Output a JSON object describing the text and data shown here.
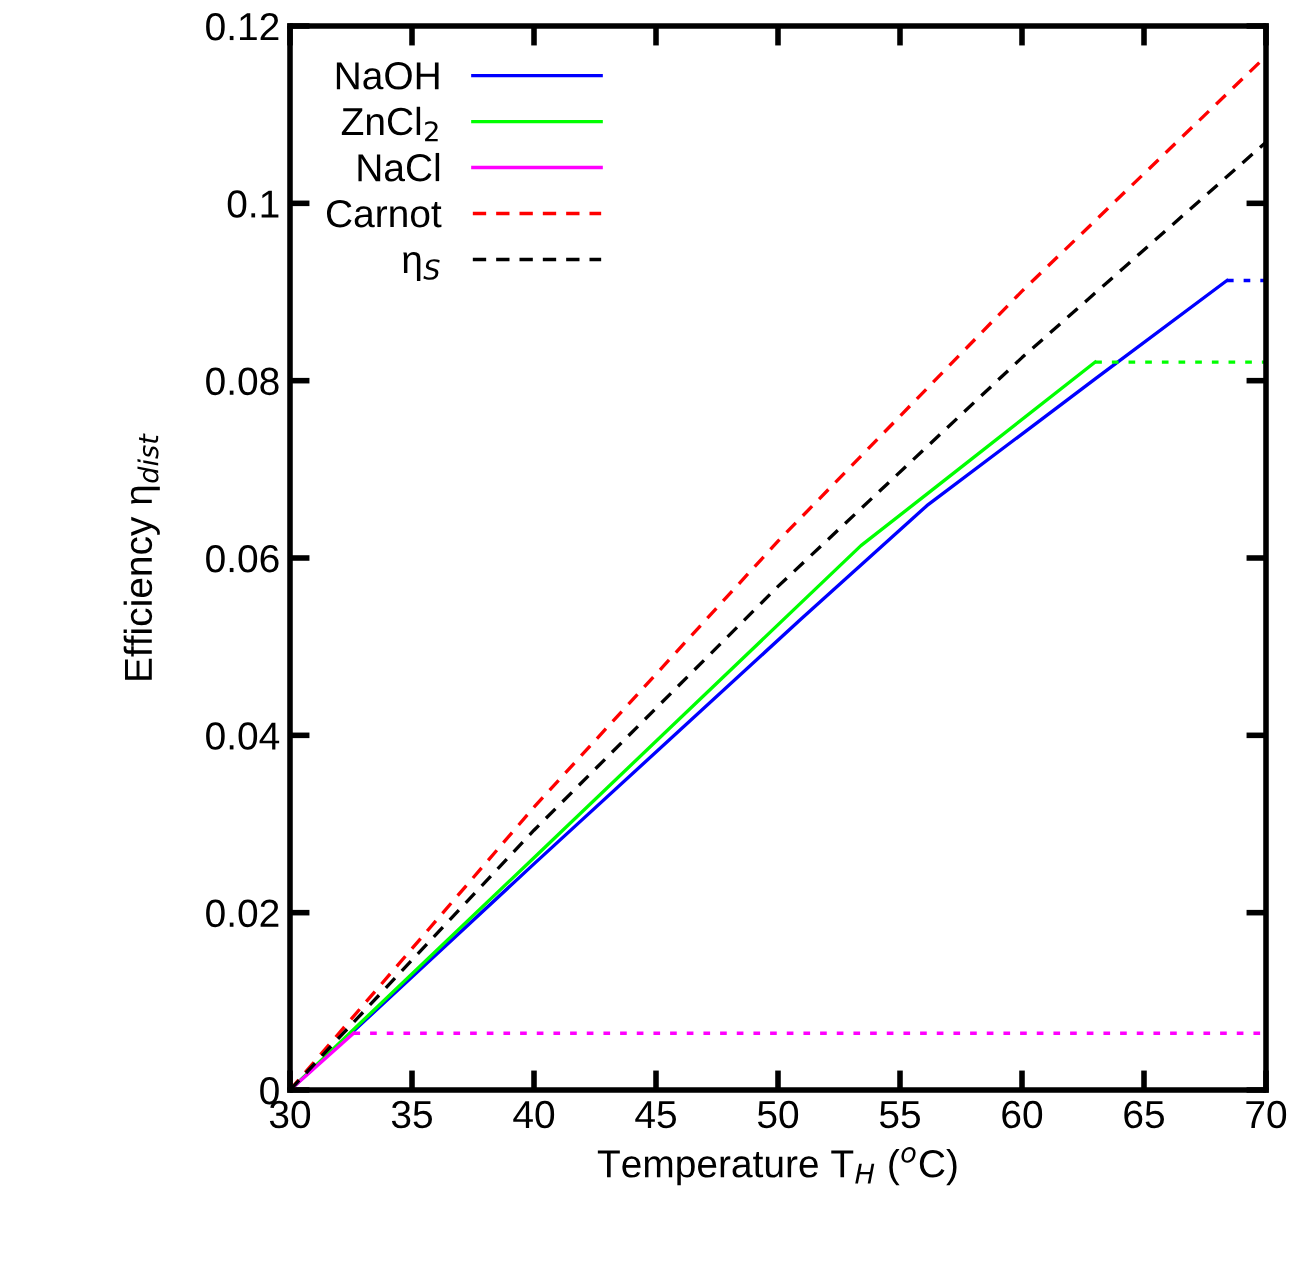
{
  "chart_data": {
    "type": "line",
    "xlabel": "Temperature T$_{H}$ ($^{o}$C)",
    "ylabel": "Efficiency η$_{dist}$",
    "xlim": [
      30,
      70
    ],
    "ylim": [
      0,
      0.12
    ],
    "xticks": [
      30,
      35,
      40,
      45,
      50,
      55,
      60,
      65,
      70
    ],
    "yticks": [
      0,
      {
        "value": 0.02,
        "label": "0.02"
      },
      {
        "value": 0.04,
        "label": "0.04"
      },
      {
        "value": 0.06,
        "label": "0.06"
      },
      {
        "value": 0.08,
        "label": "0.08"
      },
      {
        "value": 0.1,
        "label": "0.1"
      },
      {
        "value": 0.12,
        "label": "0.12"
      }
    ],
    "grid": false,
    "legend": "top left",
    "marker": "none",
    "series": [
      {
        "name": "NaOH",
        "color": "#0000ff",
        "line_style": "solid",
        "x": [
          30,
          40,
          50.9,
          56.1,
          63,
          68.4
        ],
        "values": [
          0,
          0.0255,
          0.053,
          0.0659,
          0.0802,
          0.0913
        ]
      },
      {
        "name": "ZnCl$_{2}$",
        "color": "#00ff00",
        "line_style": "solid",
        "x": [
          30,
          40,
          53.4,
          56.1,
          63.0
        ],
        "values": [
          0,
          0.0262,
          0.0614,
          0.0672,
          0.0821
        ]
      },
      {
        "name": "NaCl",
        "color": "#ff00ff",
        "line_style": "solid",
        "x": [
          30,
          32.6
        ],
        "values": [
          0,
          0.0064
        ]
      },
      {
        "name": "Carnot",
        "color": "#ff0000",
        "line_style": "dashed",
        "x": [
          30,
          40,
          50,
          60,
          70
        ],
        "values": [
          0,
          0.0319,
          0.0619,
          0.0901,
          0.1166
        ]
      },
      {
        "name": "η$_{S}$",
        "color": "#000000",
        "line_style": "dashed",
        "x": [
          30,
          40,
          50,
          60,
          70
        ],
        "values": [
          0,
          0.0293,
          0.0568,
          0.0826,
          0.1069
        ]
      },
      {
        "color": "#0000ff",
        "line_style": "dotted",
        "x": [
          68.4,
          70
        ],
        "values": [
          0.0913,
          0.0913
        ]
      },
      {
        "color": "#00ff00",
        "line_style": "dotted",
        "x": [
          63.0,
          70
        ],
        "values": [
          0.0821,
          0.0821
        ]
      },
      {
        "color": "#ff00ff",
        "line_style": "dotted",
        "x": [
          32.6,
          70
        ],
        "values": [
          0.0064,
          0.0064
        ]
      }
    ]
  }
}
